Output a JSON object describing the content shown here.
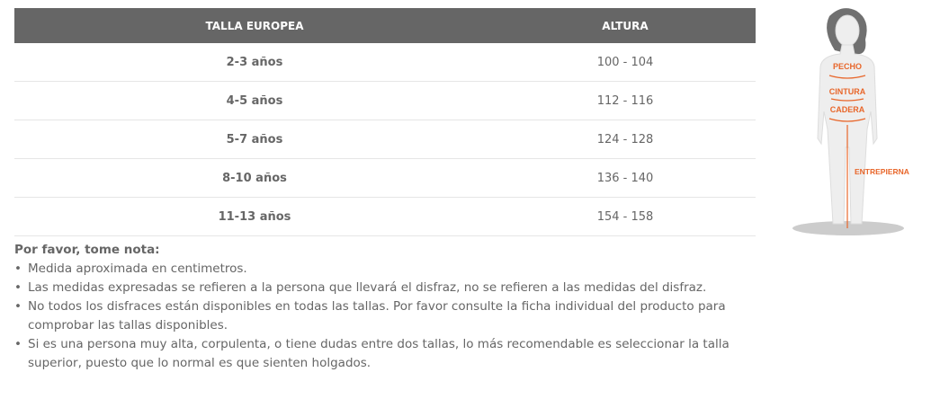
{
  "table": {
    "headers": [
      "TALLA EUROPEA",
      "ALTURA"
    ],
    "rows": [
      {
        "size": "2-3 años",
        "height": "100 - 104"
      },
      {
        "size": "4-5 años",
        "height": "112 - 116"
      },
      {
        "size": "5-7 años",
        "height": "124 - 128"
      },
      {
        "size": "8-10 años",
        "height": "136 - 140"
      },
      {
        "size": "11-13 años",
        "height": "154 - 158"
      }
    ]
  },
  "notes": {
    "title": "Por favor, tome nota:",
    "items": [
      "Medida aproximada en centimetros.",
      "Las medidas expresadas se refieren a la persona que llevará el disfraz, no se refieren a las medidas del disfraz.",
      "No todos los disfraces están disponibles en todas las tallas. Por favor consulte la ficha individual del producto para comprobar las tallas disponibles.",
      "Si es una persona muy alta, corpulenta, o tiene dudas entre dos tallas, lo más recomendable es seleccionar la talla superior, puesto que lo normal es que sienten holgados."
    ]
  },
  "figure": {
    "labels": {
      "chest": "PECHO",
      "waist": "CINTURA",
      "hip": "CADERA",
      "inseam": "ENTREPIERNA"
    },
    "accent": "#e8662a"
  }
}
